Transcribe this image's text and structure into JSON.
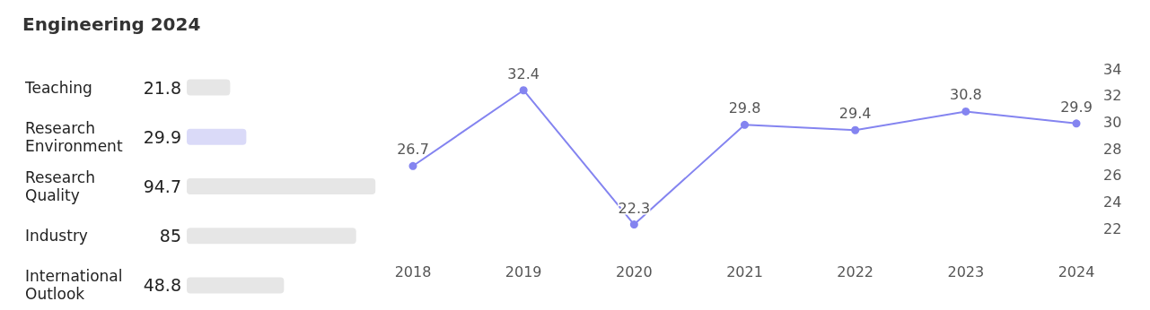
{
  "chart_data": [
    {
      "type": "bar",
      "title": "Engineering 2024",
      "orientation": "horizontal",
      "categories": [
        "Teaching",
        "Research Environment",
        "Research Quality",
        "Industry",
        "International Outlook"
      ],
      "values": [
        21.8,
        29.9,
        94.7,
        85,
        48.8
      ],
      "colors": [
        "#e6e6e6",
        "#dadaf8",
        "#e6e6e6",
        "#e6e6e6",
        "#e6e6e6"
      ],
      "data_labels": true
    },
    {
      "type": "line",
      "categories": [
        "2018",
        "2019",
        "2020",
        "2021",
        "2022",
        "2023",
        "2024"
      ],
      "series": [
        {
          "color": "#8484f0",
          "values": [
            26.7,
            32.4,
            22.3,
            29.8,
            29.4,
            30.8,
            29.9
          ]
        }
      ],
      "ylim": [
        22,
        34
      ],
      "yticks": [
        22,
        24,
        26,
        28,
        30,
        32,
        34
      ],
      "grid": false,
      "marker": "circle",
      "data_labels": true
    }
  ]
}
